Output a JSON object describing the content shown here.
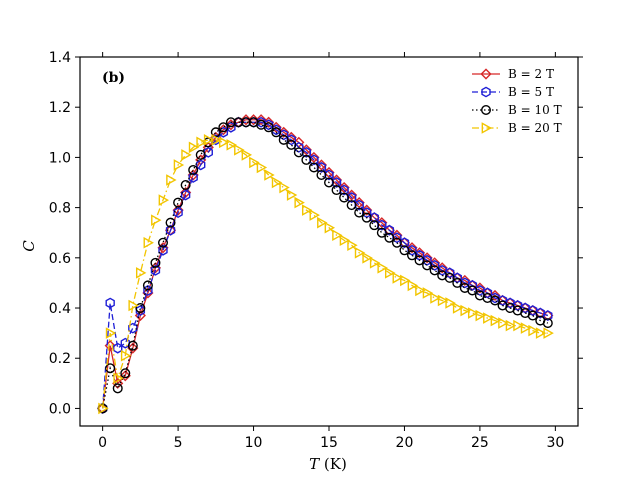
{
  "chart_data": {
    "type": "line",
    "panel_label": "(b)",
    "xlabel": "T (K)",
    "ylabel": "C",
    "xlim": [
      -1.5,
      31.5
    ],
    "ylim": [
      -0.07,
      1.4
    ],
    "xticks": [
      "0",
      "5",
      "10",
      "15",
      "20",
      "25",
      "30"
    ],
    "yticks": [
      "0.0",
      "0.2",
      "0.4",
      "0.6",
      "0.8",
      "1.0",
      "1.2",
      "1.4"
    ],
    "grid": false,
    "legend_placement": "top-right",
    "series": [
      {
        "name": "B = 2 T",
        "color": "#d62728",
        "marker": "diamond",
        "line": "solid",
        "x": [
          0,
          0.5,
          1,
          1.5,
          2,
          2.5,
          3,
          3.5,
          4,
          4.5,
          5,
          5.5,
          6,
          6.5,
          7,
          7.5,
          8,
          8.5,
          9,
          9.5,
          10,
          10.5,
          11,
          11.5,
          12,
          12.5,
          13,
          13.5,
          14,
          14.5,
          15,
          15.5,
          16,
          16.5,
          17,
          17.5,
          18,
          18.5,
          19,
          19.5,
          20,
          20.5,
          21,
          21.5,
          22,
          22.5,
          23,
          23.5,
          24,
          24.5,
          25,
          25.5,
          26,
          26.5,
          27,
          27.5,
          28,
          28.5,
          29,
          29.5
        ],
        "y": [
          0.0,
          0.25,
          0.1,
          0.13,
          0.24,
          0.37,
          0.46,
          0.56,
          0.64,
          0.71,
          0.79,
          0.86,
          0.93,
          0.99,
          1.04,
          1.08,
          1.11,
          1.13,
          1.14,
          1.15,
          1.15,
          1.15,
          1.14,
          1.12,
          1.1,
          1.08,
          1.06,
          1.03,
          1.0,
          0.97,
          0.94,
          0.91,
          0.88,
          0.85,
          0.82,
          0.79,
          0.76,
          0.74,
          0.71,
          0.69,
          0.66,
          0.64,
          0.62,
          0.6,
          0.58,
          0.56,
          0.54,
          0.52,
          0.51,
          0.49,
          0.48,
          0.46,
          0.45,
          0.43,
          0.42,
          0.41,
          0.4,
          0.39,
          0.38,
          0.37
        ]
      },
      {
        "name": "B = 5 T",
        "color": "#1f1fd6",
        "marker": "hexagon",
        "line": "dashed",
        "x": [
          0,
          0.5,
          1,
          1.5,
          2,
          2.5,
          3,
          3.5,
          4,
          4.5,
          5,
          5.5,
          6,
          6.5,
          7,
          7.5,
          8,
          8.5,
          9,
          9.5,
          10,
          10.5,
          11,
          11.5,
          12,
          12.5,
          13,
          13.5,
          14,
          14.5,
          15,
          15.5,
          16,
          16.5,
          17,
          17.5,
          18,
          18.5,
          19,
          19.5,
          20,
          20.5,
          21,
          21.5,
          22,
          22.5,
          23,
          23.5,
          24,
          24.5,
          25,
          25.5,
          26,
          26.5,
          27,
          27.5,
          28,
          28.5,
          29,
          29.5
        ],
        "y": [
          0.0,
          0.42,
          0.24,
          0.26,
          0.32,
          0.39,
          0.47,
          0.55,
          0.63,
          0.71,
          0.78,
          0.85,
          0.92,
          0.97,
          1.02,
          1.07,
          1.1,
          1.12,
          1.14,
          1.14,
          1.14,
          1.14,
          1.13,
          1.11,
          1.09,
          1.07,
          1.04,
          1.02,
          0.99,
          0.96,
          0.93,
          0.9,
          0.87,
          0.84,
          0.81,
          0.78,
          0.76,
          0.73,
          0.71,
          0.68,
          0.66,
          0.63,
          0.61,
          0.59,
          0.57,
          0.55,
          0.54,
          0.52,
          0.5,
          0.49,
          0.47,
          0.46,
          0.44,
          0.43,
          0.42,
          0.41,
          0.4,
          0.39,
          0.38,
          0.37
        ]
      },
      {
        "name": "B = 10 T",
        "color": "#000000",
        "marker": "circle",
        "line": "dotted",
        "x": [
          0,
          0.5,
          1,
          1.5,
          2,
          2.5,
          3,
          3.5,
          4,
          4.5,
          5,
          5.5,
          6,
          6.5,
          7,
          7.5,
          8,
          8.5,
          9,
          9.5,
          10,
          10.5,
          11,
          11.5,
          12,
          12.5,
          13,
          13.5,
          14,
          14.5,
          15,
          15.5,
          16,
          16.5,
          17,
          17.5,
          18,
          18.5,
          19,
          19.5,
          20,
          20.5,
          21,
          21.5,
          22,
          22.5,
          23,
          23.5,
          24,
          24.5,
          25,
          25.5,
          26,
          26.5,
          27,
          27.5,
          28,
          28.5,
          29,
          29.5
        ],
        "y": [
          0.0,
          0.16,
          0.08,
          0.14,
          0.25,
          0.4,
          0.49,
          0.58,
          0.66,
          0.74,
          0.82,
          0.89,
          0.95,
          1.01,
          1.06,
          1.1,
          1.12,
          1.14,
          1.14,
          1.14,
          1.14,
          1.13,
          1.12,
          1.1,
          1.07,
          1.05,
          1.02,
          0.99,
          0.96,
          0.93,
          0.9,
          0.87,
          0.84,
          0.81,
          0.78,
          0.76,
          0.73,
          0.7,
          0.68,
          0.66,
          0.63,
          0.61,
          0.59,
          0.57,
          0.55,
          0.53,
          0.52,
          0.5,
          0.48,
          0.47,
          0.45,
          0.44,
          0.43,
          0.41,
          0.4,
          0.39,
          0.38,
          0.37,
          0.35,
          0.34
        ]
      },
      {
        "name": "B = 20 T",
        "color": "#f2c500",
        "marker": "triangle-right",
        "line": "dashdot",
        "x": [
          0,
          0.5,
          1,
          1.5,
          2,
          2.5,
          3,
          3.5,
          4,
          4.5,
          5,
          5.5,
          6,
          6.5,
          7,
          7.5,
          8,
          8.5,
          9,
          9.5,
          10,
          10.5,
          11,
          11.5,
          12,
          12.5,
          13,
          13.5,
          14,
          14.5,
          15,
          15.5,
          16,
          16.5,
          17,
          17.5,
          18,
          18.5,
          19,
          19.5,
          20,
          20.5,
          21,
          21.5,
          22,
          22.5,
          23,
          23.5,
          24,
          24.5,
          25,
          25.5,
          26,
          26.5,
          27,
          27.5,
          28,
          28.5,
          29,
          29.5
        ],
        "y": [
          0.0,
          0.3,
          0.12,
          0.21,
          0.41,
          0.54,
          0.66,
          0.75,
          0.83,
          0.91,
          0.97,
          1.01,
          1.04,
          1.06,
          1.07,
          1.07,
          1.06,
          1.05,
          1.03,
          1.01,
          0.98,
          0.96,
          0.93,
          0.9,
          0.88,
          0.85,
          0.82,
          0.79,
          0.77,
          0.74,
          0.72,
          0.69,
          0.67,
          0.65,
          0.62,
          0.6,
          0.58,
          0.56,
          0.54,
          0.52,
          0.51,
          0.49,
          0.47,
          0.46,
          0.44,
          0.43,
          0.42,
          0.4,
          0.39,
          0.38,
          0.37,
          0.36,
          0.35,
          0.34,
          0.33,
          0.33,
          0.32,
          0.31,
          0.3,
          0.3
        ]
      }
    ]
  }
}
